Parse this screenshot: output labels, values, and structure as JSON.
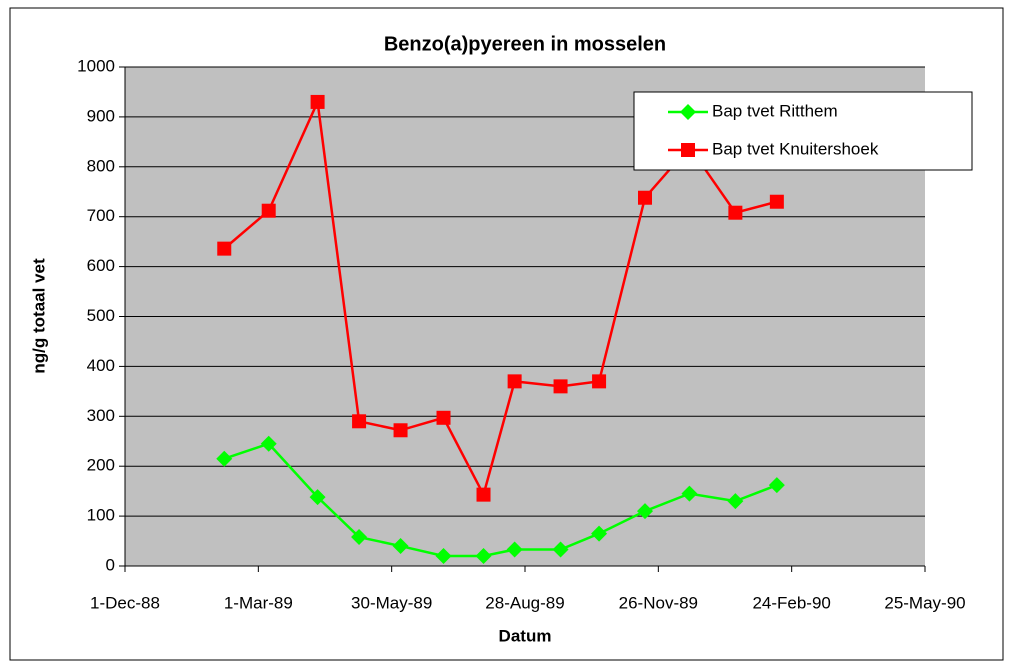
{
  "chart_data": {
    "type": "line",
    "title": "Benzo(a)pyereen in mosselen",
    "xlabel": "Datum",
    "ylabel": "ng/g totaal vet",
    "x": [
      "1989-02-06",
      "1989-03-08",
      "1989-04-10",
      "1989-05-08",
      "1989-06-05",
      "1989-07-04",
      "1989-07-31",
      "1989-08-21",
      "1989-09-21",
      "1989-10-17",
      "1989-11-17",
      "1989-12-17",
      "1990-01-17",
      "1990-02-14"
    ],
    "series": [
      {
        "name": "Bap tvet Ritthem",
        "color": "#00ff00",
        "marker": "diamond",
        "values": [
          215,
          245,
          138,
          58,
          40,
          20,
          20,
          33,
          33,
          65,
          110,
          145,
          130,
          162
        ]
      },
      {
        "name": "Bap tvet Knuitershoek",
        "color": "#ff0000",
        "marker": "square",
        "values": [
          636,
          712,
          930,
          290,
          272,
          297,
          143,
          370,
          360,
          370,
          738,
          840,
          708,
          730
        ]
      }
    ],
    "xlim": [
      "1988-12-01",
      "1990-05-25"
    ],
    "xticks": [
      {
        "value": "1988-12-01",
        "label": "1-Dec-88"
      },
      {
        "value": "1989-03-01",
        "label": "1-Mar-89"
      },
      {
        "value": "1989-05-30",
        "label": "30-May-89"
      },
      {
        "value": "1989-08-28",
        "label": "28-Aug-89"
      },
      {
        "value": "1989-11-26",
        "label": "26-Nov-89"
      },
      {
        "value": "1990-02-24",
        "label": "24-Feb-90"
      },
      {
        "value": "1990-05-25",
        "label": "25-May-90"
      }
    ],
    "ylim": [
      0,
      1000
    ],
    "yticks": [
      0,
      100,
      200,
      300,
      400,
      500,
      600,
      700,
      800,
      900,
      1000
    ],
    "grid": true,
    "legend": "top-right",
    "plot_background": "#c0c0c0"
  }
}
